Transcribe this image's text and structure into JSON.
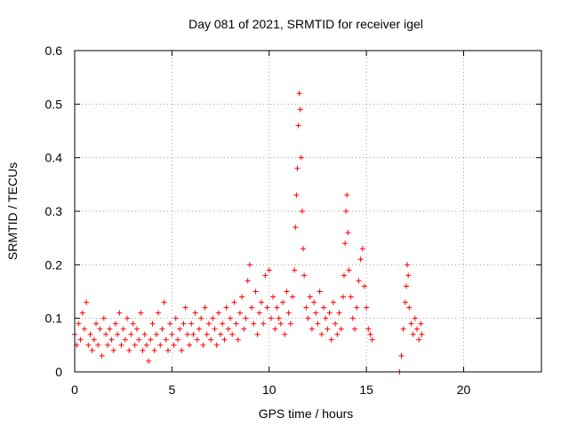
{
  "chart_data": {
    "type": "scatter",
    "title": "Day 081 of 2021, SRMTID for receiver igel",
    "xlabel": "GPS time / hours",
    "ylabel": "SRMTID / TECUs",
    "xlim": [
      0,
      24
    ],
    "ylim": [
      0,
      0.6
    ],
    "xticks": [
      0,
      5,
      10,
      15,
      20
    ],
    "xtick_labels": [
      "0",
      "5",
      "10",
      "15",
      "20"
    ],
    "yticks": [
      0,
      0.1,
      0.2,
      0.3,
      0.4,
      0.5,
      0.6
    ],
    "ytick_labels": [
      "0",
      "0.1",
      "0.2",
      "0.3",
      "0.4",
      "0.5",
      "0.6"
    ],
    "grid": true,
    "marker": "plus",
    "color": "#ff0000",
    "series": [
      {
        "name": "SRMTID",
        "points": [
          [
            0.0,
            0.07
          ],
          [
            0.1,
            0.05
          ],
          [
            0.2,
            0.09
          ],
          [
            0.3,
            0.06
          ],
          [
            0.4,
            0.11
          ],
          [
            0.5,
            0.08
          ],
          [
            0.6,
            0.13
          ],
          [
            0.7,
            0.05
          ],
          [
            0.8,
            0.07
          ],
          [
            0.9,
            0.04
          ],
          [
            1.0,
            0.06
          ],
          [
            1.1,
            0.09
          ],
          [
            1.2,
            0.05
          ],
          [
            1.3,
            0.08
          ],
          [
            1.4,
            0.03
          ],
          [
            1.5,
            0.1
          ],
          [
            1.6,
            0.07
          ],
          [
            1.7,
            0.05
          ],
          [
            1.8,
            0.08
          ],
          [
            1.9,
            0.06
          ],
          [
            2.0,
            0.04
          ],
          [
            2.1,
            0.09
          ],
          [
            2.2,
            0.07
          ],
          [
            2.3,
            0.11
          ],
          [
            2.4,
            0.05
          ],
          [
            2.5,
            0.08
          ],
          [
            2.6,
            0.06
          ],
          [
            2.7,
            0.1
          ],
          [
            2.8,
            0.04
          ],
          [
            2.9,
            0.07
          ],
          [
            3.0,
            0.09
          ],
          [
            3.1,
            0.05
          ],
          [
            3.2,
            0.08
          ],
          [
            3.3,
            0.06
          ],
          [
            3.4,
            0.11
          ],
          [
            3.5,
            0.04
          ],
          [
            3.6,
            0.07
          ],
          [
            3.7,
            0.05
          ],
          [
            3.8,
            0.02
          ],
          [
            3.9,
            0.06
          ],
          [
            4.0,
            0.09
          ],
          [
            4.1,
            0.04
          ],
          [
            4.2,
            0.07
          ],
          [
            4.3,
            0.11
          ],
          [
            4.4,
            0.05
          ],
          [
            4.5,
            0.08
          ],
          [
            4.6,
            0.13
          ],
          [
            4.7,
            0.06
          ],
          [
            4.8,
            0.04
          ],
          [
            4.9,
            0.09
          ],
          [
            5.0,
            0.07
          ],
          [
            5.1,
            0.05
          ],
          [
            5.2,
            0.1
          ],
          [
            5.3,
            0.06
          ],
          [
            5.4,
            0.08
          ],
          [
            5.5,
            0.04
          ],
          [
            5.6,
            0.09
          ],
          [
            5.7,
            0.12
          ],
          [
            5.8,
            0.07
          ],
          [
            5.9,
            0.05
          ],
          [
            6.0,
            0.09
          ],
          [
            6.1,
            0.07
          ],
          [
            6.2,
            0.11
          ],
          [
            6.3,
            0.06
          ],
          [
            6.4,
            0.08
          ],
          [
            6.5,
            0.1
          ],
          [
            6.6,
            0.05
          ],
          [
            6.7,
            0.12
          ],
          [
            6.8,
            0.07
          ],
          [
            6.9,
            0.09
          ],
          [
            7.0,
            0.06
          ],
          [
            7.1,
            0.1
          ],
          [
            7.2,
            0.08
          ],
          [
            7.3,
            0.05
          ],
          [
            7.4,
            0.11
          ],
          [
            7.5,
            0.07
          ],
          [
            7.6,
            0.09
          ],
          [
            7.7,
            0.06
          ],
          [
            7.8,
            0.12
          ],
          [
            7.9,
            0.08
          ],
          [
            8.0,
            0.1
          ],
          [
            8.1,
            0.07
          ],
          [
            8.2,
            0.13
          ],
          [
            8.3,
            0.09
          ],
          [
            8.4,
            0.06
          ],
          [
            8.5,
            0.11
          ],
          [
            8.6,
            0.14
          ],
          [
            8.7,
            0.08
          ],
          [
            8.8,
            0.1
          ],
          [
            8.9,
            0.17
          ],
          [
            9.0,
            0.2
          ],
          [
            9.1,
            0.12
          ],
          [
            9.2,
            0.09
          ],
          [
            9.3,
            0.15
          ],
          [
            9.4,
            0.07
          ],
          [
            9.5,
            0.11
          ],
          [
            9.6,
            0.13
          ],
          [
            9.7,
            0.09
          ],
          [
            9.8,
            0.18
          ],
          [
            9.9,
            0.12
          ],
          [
            10.0,
            0.19
          ],
          [
            10.1,
            0.1
          ],
          [
            10.2,
            0.14
          ],
          [
            10.3,
            0.08
          ],
          [
            10.4,
            0.12
          ],
          [
            10.5,
            0.1
          ],
          [
            10.6,
            0.09
          ],
          [
            10.7,
            0.13
          ],
          [
            10.8,
            0.07
          ],
          [
            10.9,
            0.15
          ],
          [
            11.0,
            0.11
          ],
          [
            11.1,
            0.09
          ],
          [
            11.2,
            0.14
          ],
          [
            11.3,
            0.19
          ],
          [
            11.35,
            0.27
          ],
          [
            11.4,
            0.33
          ],
          [
            11.45,
            0.38
          ],
          [
            11.5,
            0.46
          ],
          [
            11.55,
            0.52
          ],
          [
            11.6,
            0.49
          ],
          [
            11.65,
            0.4
          ],
          [
            11.7,
            0.3
          ],
          [
            11.75,
            0.23
          ],
          [
            11.8,
            0.18
          ],
          [
            11.9,
            0.12
          ],
          [
            12.0,
            0.1
          ],
          [
            12.1,
            0.14
          ],
          [
            12.2,
            0.08
          ],
          [
            12.3,
            0.13
          ],
          [
            12.4,
            0.11
          ],
          [
            12.5,
            0.09
          ],
          [
            12.6,
            0.15
          ],
          [
            12.7,
            0.07
          ],
          [
            12.8,
            0.12
          ],
          [
            12.9,
            0.1
          ],
          [
            13.0,
            0.08
          ],
          [
            13.1,
            0.11
          ],
          [
            13.2,
            0.06
          ],
          [
            13.3,
            0.13
          ],
          [
            13.4,
            0.09
          ],
          [
            13.5,
            0.07
          ],
          [
            13.6,
            0.11
          ],
          [
            13.7,
            0.08
          ],
          [
            13.8,
            0.14
          ],
          [
            13.85,
            0.18
          ],
          [
            13.9,
            0.24
          ],
          [
            13.95,
            0.3
          ],
          [
            14.0,
            0.33
          ],
          [
            14.05,
            0.26
          ],
          [
            14.1,
            0.19
          ],
          [
            14.2,
            0.14
          ],
          [
            14.3,
            0.1
          ],
          [
            14.4,
            0.08
          ],
          [
            14.5,
            0.12
          ],
          [
            14.6,
            0.17
          ],
          [
            14.7,
            0.21
          ],
          [
            14.8,
            0.23
          ],
          [
            14.9,
            0.16
          ],
          [
            15.0,
            0.12
          ],
          [
            15.1,
            0.08
          ],
          [
            15.2,
            0.07
          ],
          [
            15.3,
            0.06
          ],
          [
            16.7,
            0.0
          ],
          [
            16.8,
            0.03
          ],
          [
            16.9,
            0.08
          ],
          [
            17.0,
            0.13
          ],
          [
            17.05,
            0.16
          ],
          [
            17.1,
            0.2
          ],
          [
            17.15,
            0.18
          ],
          [
            17.2,
            0.12
          ],
          [
            17.3,
            0.09
          ],
          [
            17.4,
            0.07
          ],
          [
            17.5,
            0.1
          ],
          [
            17.6,
            0.08
          ],
          [
            17.7,
            0.06
          ],
          [
            17.8,
            0.09
          ],
          [
            17.85,
            0.07
          ]
        ]
      }
    ]
  }
}
